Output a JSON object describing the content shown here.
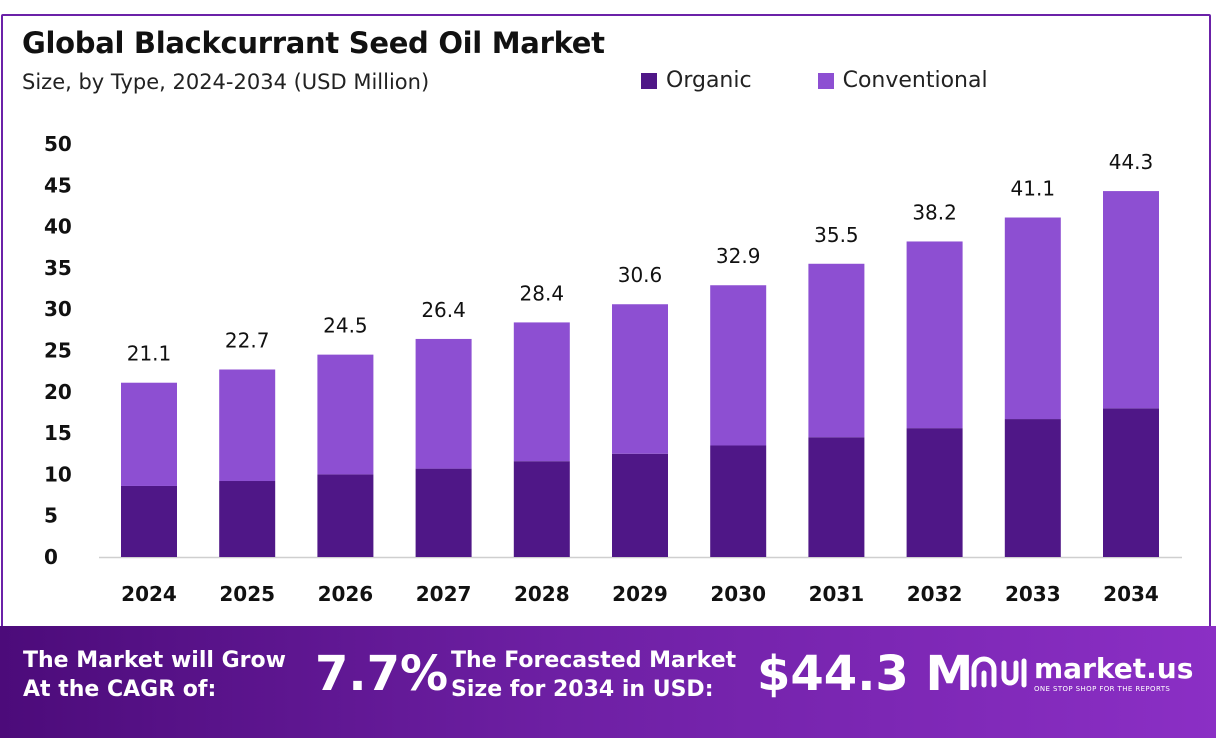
{
  "header": {
    "title": "Global Blackcurrant Seed Oil Market",
    "subtitle": "Size, by Type, 2024-2034 (USD Million)"
  },
  "legend": [
    {
      "label": "Organic",
      "color": "#4f1787"
    },
    {
      "label": "Conventional",
      "color": "#8d4fd2"
    }
  ],
  "chart_data": {
    "type": "bar",
    "stacked": true,
    "title": "Global Blackcurrant Seed Oil Market",
    "subtitle": "Size, by Type, 2024-2034 (USD Million)",
    "categories": [
      "2024",
      "2025",
      "2026",
      "2027",
      "2028",
      "2029",
      "2030",
      "2031",
      "2032",
      "2033",
      "2034"
    ],
    "series": [
      {
        "name": "Organic",
        "color": "#4f1787",
        "values": [
          8.6,
          9.2,
          10.0,
          10.7,
          11.6,
          12.5,
          13.5,
          14.5,
          15.6,
          16.7,
          18.0
        ]
      },
      {
        "name": "Conventional",
        "color": "#8d4fd2",
        "values": [
          12.5,
          13.5,
          14.5,
          15.7,
          16.8,
          18.1,
          19.4,
          21.0,
          22.6,
          24.4,
          26.3
        ]
      }
    ],
    "totals": [
      "21.1",
      "22.7",
      "24.5",
      "26.4",
      "28.4",
      "30.6",
      "32.9",
      "35.5",
      "38.2",
      "41.1",
      "44.3"
    ],
    "ylim": [
      0,
      50
    ],
    "yticks": [
      0,
      5,
      10,
      15,
      20,
      25,
      30,
      35,
      40,
      45,
      50
    ],
    "grid": false,
    "legend_position": "top-right"
  },
  "footer": {
    "cagr_line1": "The Market will Grow",
    "cagr_line2": "At the CAGR of:",
    "cagr_value": "7.7%",
    "forecast_line1": "The Forecasted Market",
    "forecast_line2": "Size for 2034 in USD:",
    "forecast_value": "$44.3 M",
    "brand_name": "market.us",
    "brand_tagline": "ONE STOP SHOP FOR THE REPORTS"
  }
}
